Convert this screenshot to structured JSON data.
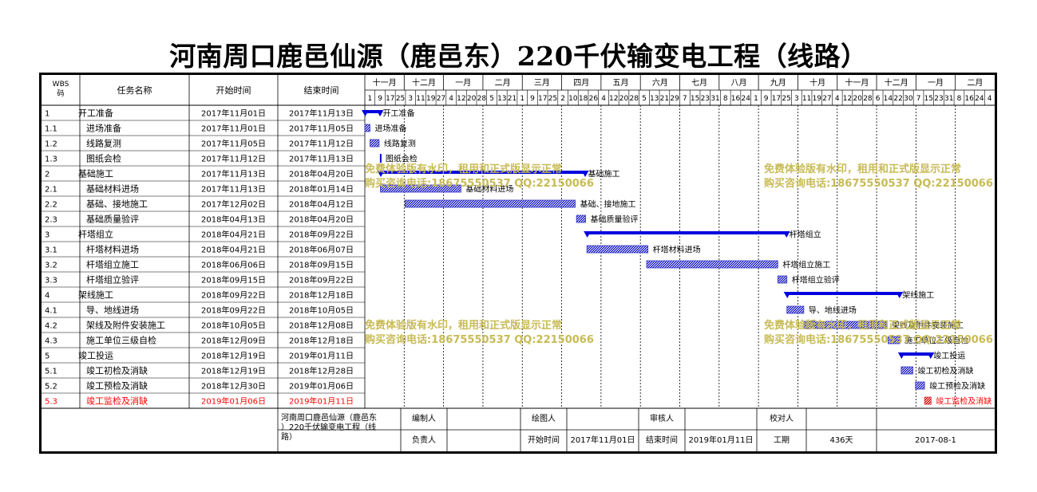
{
  "title": "河南周口鹿邑仙源（鹿邑东）220千伏输变电工程（线路）",
  "headers": {
    "wbs": "WBS码",
    "name": "任务名称",
    "start": "开始时间",
    "end": "结束时间"
  },
  "timeline": {
    "months": [
      "十一月",
      "十二月",
      "一月",
      "二月",
      "三月",
      "四月",
      "五月",
      "六月",
      "七月",
      "八月",
      "九月",
      "十月",
      "十一月",
      "十二月",
      "一月",
      "二月"
    ],
    "days": [
      "1",
      "9",
      "17",
      "25",
      "3",
      "11",
      "19",
      "27",
      "4",
      "12",
      "20",
      "28",
      "5",
      "13",
      "21",
      "1",
      "9",
      "17",
      "25",
      "2",
      "10",
      "18",
      "26",
      "4",
      "12",
      "20",
      "28",
      "5",
      "13",
      "21",
      "29",
      "7",
      "15",
      "23",
      "31",
      "8",
      "16",
      "24",
      "1",
      "9",
      "17",
      "25",
      "3",
      "11",
      "19",
      "27",
      "4",
      "12",
      "20",
      "28",
      "6",
      "14",
      "22",
      "30",
      "7",
      "15",
      "23",
      "31",
      "8",
      "16",
      "24",
      "4"
    ]
  },
  "chart_data": {
    "type": "gantt",
    "title": "河南周口鹿邑仙源（鹿邑东）220千伏输变电工程（线路）",
    "range": [
      "2017-11-01",
      "2019-02-28"
    ],
    "tasks": [
      {
        "wbs": "1",
        "name": "开工准备",
        "start": "2017年11月01日",
        "end": "2017年11月13日",
        "s": "2017-11-01",
        "e": "2017-11-13",
        "summary": true,
        "label": "开工准备"
      },
      {
        "wbs": "1.1",
        "name": "进场准备",
        "start": "2017年11月01日",
        "end": "2017年11月05日",
        "s": "2017-11-01",
        "e": "2017-11-05",
        "label": "进场准备"
      },
      {
        "wbs": "1.2",
        "name": "线路复测",
        "start": "2017年11月05日",
        "end": "2017年11月12日",
        "s": "2017-11-05",
        "e": "2017-11-12",
        "label": "线路复测"
      },
      {
        "wbs": "1.3",
        "name": "图纸会检",
        "start": "2017年11月12日",
        "end": "2017年11月13日",
        "s": "2017-11-12",
        "e": "2017-11-13",
        "milestone": true,
        "label": "图纸会检"
      },
      {
        "wbs": "2",
        "name": "基础施工",
        "start": "2017年11月13日",
        "end": "2018年04月20日",
        "s": "2017-11-13",
        "e": "2018-04-20",
        "summary": true,
        "label": "基础施工"
      },
      {
        "wbs": "2.1",
        "name": "基础材料进场",
        "start": "2017年11月13日",
        "end": "2018年01月14日",
        "s": "2017-11-13",
        "e": "2018-01-14",
        "label": "基础材料进场"
      },
      {
        "wbs": "2.2",
        "name": "基础、接地施工",
        "start": "2017年12月02日",
        "end": "2018年04月12日",
        "s": "2017-12-02",
        "e": "2018-04-12",
        "label": "基础、接地施工"
      },
      {
        "wbs": "2.3",
        "name": "基础质量验评",
        "start": "2018年04月13日",
        "end": "2018年04月20日",
        "s": "2018-04-13",
        "e": "2018-04-20",
        "label": "基础质量验评"
      },
      {
        "wbs": "3",
        "name": "杆塔组立",
        "start": "2018年04月21日",
        "end": "2018年09月22日",
        "s": "2018-04-21",
        "e": "2018-09-22",
        "summary": true,
        "label": "杆塔组立"
      },
      {
        "wbs": "3.1",
        "name": "杆塔材料进场",
        "start": "2018年04月21日",
        "end": "2018年06月07日",
        "s": "2018-04-21",
        "e": "2018-06-07",
        "label": "杆塔材料进场"
      },
      {
        "wbs": "3.2",
        "name": "杆塔组立施工",
        "start": "2018年06月06日",
        "end": "2018年09月15日",
        "s": "2018-06-06",
        "e": "2018-09-15",
        "label": "杆塔组立施工"
      },
      {
        "wbs": "3.3",
        "name": "杆塔组立验评",
        "start": "2018年09月15日",
        "end": "2018年09月22日",
        "s": "2018-09-15",
        "e": "2018-09-22",
        "label": "杆塔组立验评"
      },
      {
        "wbs": "4",
        "name": "架线施工",
        "start": "2018年09月22日",
        "end": "2018年12月18日",
        "s": "2018-09-22",
        "e": "2018-12-18",
        "summary": true,
        "label": "架线施工"
      },
      {
        "wbs": "4.1",
        "name": "导、地线进场",
        "start": "2018年09月22日",
        "end": "2018年10月05日",
        "s": "2018-09-22",
        "e": "2018-10-05",
        "label": "导、地线进场"
      },
      {
        "wbs": "4.2",
        "name": "架线及附件安装施工",
        "start": "2018年10月05日",
        "end": "2018年12月08日",
        "s": "2018-10-05",
        "e": "2018-12-08",
        "label": "架线及附件安装施工"
      },
      {
        "wbs": "4.3",
        "name": "施工单位三级自检",
        "start": "2018年12月09日",
        "end": "2018年12月18日",
        "s": "2018-12-09",
        "e": "2018-12-18",
        "label": "施工单位三级自检"
      },
      {
        "wbs": "5",
        "name": "竣工投运",
        "start": "2018年12月19日",
        "end": "2019年01月11日",
        "s": "2018-12-19",
        "e": "2019-01-11",
        "summary": true,
        "label": "竣工投运"
      },
      {
        "wbs": "5.1",
        "name": "竣工初检及消缺",
        "start": "2018年12月19日",
        "end": "2018年12月28日",
        "s": "2018-12-19",
        "e": "2018-12-28",
        "label": "竣工初检及消缺"
      },
      {
        "wbs": "5.2",
        "name": "竣工预检及消缺",
        "start": "2018年12月30日",
        "end": "2019年01月06日",
        "s": "2018-12-30",
        "e": "2019-01-06",
        "label": "竣工预检及消缺"
      },
      {
        "wbs": "5.3",
        "name": "竣工监检及消缺",
        "start": "2019年01月06日",
        "end": "2019年01月11日",
        "s": "2019-01-06",
        "e": "2019-01-11",
        "critical": true,
        "label": "竣工监检及消缺"
      }
    ]
  },
  "watermark": {
    "line1": "免费体验版有水印，租用和正式版显示正常",
    "line2": "购买咨询电话:18675550537 QQ:22150066"
  },
  "footer": {
    "project": "河南周口鹿邑仙源（鹿邑东）220千伏输变电工程（线路）",
    "compiler_label": "编制人",
    "drawer_label": "绘图人",
    "reviewer_label": "审核人",
    "checker_label": "校对人",
    "owner_label": "负责人",
    "start_label": "开始时间",
    "start_value": "2017年11月01日",
    "end_label": "结束时间",
    "end_value": "2019年01月11日",
    "duration_label": "工期",
    "duration_value": "436天",
    "date_value": "2017-08-1"
  },
  "colors": {
    "bar": "#3333cc",
    "summary": "#0000dd",
    "critical": "#dd2222",
    "critical_text": "#ff0000",
    "watermark": "#c8bb55"
  }
}
